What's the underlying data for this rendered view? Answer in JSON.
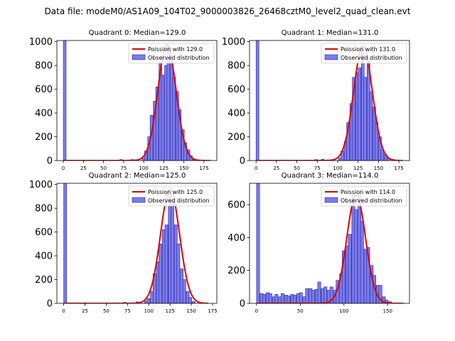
{
  "figure": {
    "suptitle": "Data file: modeM0/AS1A09_104T02_9000003826_26468cztM0_level2_quad_clean.evt"
  },
  "colors": {
    "bar_fill": "#7b7bea",
    "bar_edge": "#2828a8",
    "fit_line": "#e00000"
  },
  "chart_data": [
    {
      "type": "bar",
      "title": "Quadrant 0: Median=129.0",
      "xlabel": "",
      "ylabel": "",
      "xlim": [
        -8,
        191
      ],
      "ylim": [
        0,
        1010
      ],
      "xticks": [
        0,
        25,
        50,
        75,
        100,
        125,
        150,
        175
      ],
      "yticks": [
        0,
        200,
        400,
        600,
        800,
        1000
      ],
      "bin_width": 3.5,
      "legend": [
        "Poission with 129.0",
        "Observed distribution"
      ],
      "legend_loc": "upper-right",
      "bins": [
        [
          0,
          1010
        ],
        [
          70,
          8
        ],
        [
          80,
          5
        ],
        [
          84,
          8
        ],
        [
          98,
          20
        ],
        [
          101,
          80
        ],
        [
          105,
          200
        ],
        [
          108,
          380
        ],
        [
          112,
          500
        ],
        [
          115,
          620
        ],
        [
          119,
          820
        ],
        [
          122,
          720
        ],
        [
          126,
          800
        ],
        [
          129,
          960
        ],
        [
          133,
          820
        ],
        [
          136,
          700
        ],
        [
          140,
          580
        ],
        [
          143,
          430
        ],
        [
          147,
          260
        ],
        [
          150,
          150
        ],
        [
          154,
          90
        ],
        [
          157,
          40
        ],
        [
          161,
          12
        ]
      ],
      "poisson_mean": 129.0,
      "poisson_peak": 975,
      "poisson_range": [
        0,
        183
      ]
    },
    {
      "type": "bar",
      "title": "Quadrant 1: Median=131.0",
      "xlabel": "",
      "ylabel": "",
      "xlim": [
        -8,
        188
      ],
      "ylim": [
        0,
        1010
      ],
      "xticks": [
        0,
        25,
        50,
        75,
        100,
        125,
        150,
        175
      ],
      "yticks": [
        0,
        200,
        400,
        600,
        800,
        1000
      ],
      "bin_width": 3.5,
      "legend": [
        "Poission with 131.0",
        "Observed distribution"
      ],
      "legend_loc": "upper-right",
      "bins": [
        [
          0,
          1010
        ],
        [
          72,
          8
        ],
        [
          80,
          10
        ],
        [
          86,
          5
        ],
        [
          101,
          20
        ],
        [
          104,
          80
        ],
        [
          108,
          160
        ],
        [
          111,
          320
        ],
        [
          115,
          480
        ],
        [
          118,
          700
        ],
        [
          122,
          740
        ],
        [
          125,
          780
        ],
        [
          129,
          960
        ],
        [
          132,
          700
        ],
        [
          136,
          840
        ],
        [
          139,
          580
        ],
        [
          143,
          450
        ],
        [
          146,
          320
        ],
        [
          150,
          200
        ],
        [
          153,
          90
        ],
        [
          157,
          50
        ],
        [
          160,
          20
        ]
      ],
      "poisson_mean": 131.0,
      "poisson_peak": 965,
      "poisson_range": [
        0,
        180
      ]
    },
    {
      "type": "bar",
      "title": "Quadrant 2: Median=125.0",
      "xlabel": "",
      "ylabel": "",
      "xlim": [
        -8,
        180
      ],
      "ylim": [
        0,
        1010
      ],
      "xticks": [
        0,
        25,
        50,
        75,
        100,
        125,
        150,
        175
      ],
      "yticks": [
        0,
        200,
        400,
        600,
        800,
        1000
      ],
      "bin_width": 3.5,
      "legend": [
        "Poission with 125.0",
        "Observed distribution"
      ],
      "legend_loc": "upper-right",
      "bins": [
        [
          0,
          1010
        ],
        [
          70,
          8
        ],
        [
          78,
          5
        ],
        [
          85,
          12
        ],
        [
          95,
          20
        ],
        [
          98,
          40
        ],
        [
          102,
          100
        ],
        [
          105,
          250
        ],
        [
          109,
          350
        ],
        [
          112,
          500
        ],
        [
          116,
          620
        ],
        [
          119,
          660
        ],
        [
          123,
          920
        ],
        [
          126,
          860
        ],
        [
          130,
          660
        ],
        [
          133,
          500
        ],
        [
          137,
          290
        ],
        [
          140,
          200
        ],
        [
          144,
          100
        ],
        [
          147,
          50
        ],
        [
          151,
          15
        ]
      ],
      "poisson_mean": 125.0,
      "poisson_peak": 960,
      "poisson_range": [
        0,
        170
      ]
    },
    {
      "type": "bar",
      "title": "Quadrant 3: Median=114.0",
      "xlabel": "",
      "ylabel": "",
      "xlim": [
        -8,
        175
      ],
      "ylim": [
        0,
        730
      ],
      "xticks": [
        0,
        50,
        100,
        150
      ],
      "yticks": [
        0,
        200,
        400,
        600
      ],
      "bin_width": 3.5,
      "legend": [
        "Poission with 114.0",
        "Observed distribution"
      ],
      "legend_loc": "upper-right",
      "bins": [
        [
          0,
          730
        ],
        [
          4,
          60
        ],
        [
          7,
          55
        ],
        [
          11,
          65
        ],
        [
          14,
          60
        ],
        [
          18,
          40
        ],
        [
          21,
          55
        ],
        [
          25,
          40
        ],
        [
          28,
          60
        ],
        [
          32,
          50
        ],
        [
          35,
          45
        ],
        [
          39,
          55
        ],
        [
          42,
          50
        ],
        [
          46,
          60
        ],
        [
          49,
          65
        ],
        [
          53,
          40
        ],
        [
          56,
          90
        ],
        [
          60,
          90
        ],
        [
          63,
          80
        ],
        [
          67,
          85
        ],
        [
          70,
          130
        ],
        [
          74,
          90
        ],
        [
          77,
          100
        ],
        [
          81,
          80
        ],
        [
          84,
          100
        ],
        [
          88,
          80
        ],
        [
          91,
          140
        ],
        [
          95,
          180
        ],
        [
          98,
          320
        ],
        [
          102,
          350
        ],
        [
          105,
          420
        ],
        [
          109,
          660
        ],
        [
          112,
          570
        ],
        [
          116,
          670
        ],
        [
          119,
          500
        ],
        [
          123,
          330
        ],
        [
          126,
          340
        ],
        [
          130,
          230
        ],
        [
          133,
          170
        ],
        [
          137,
          110
        ],
        [
          140,
          110
        ],
        [
          144,
          40
        ],
        [
          147,
          20
        ],
        [
          151,
          10
        ]
      ],
      "poisson_mean": 114.0,
      "poisson_peak": 660,
      "poisson_range": [
        0,
        168
      ]
    }
  ]
}
